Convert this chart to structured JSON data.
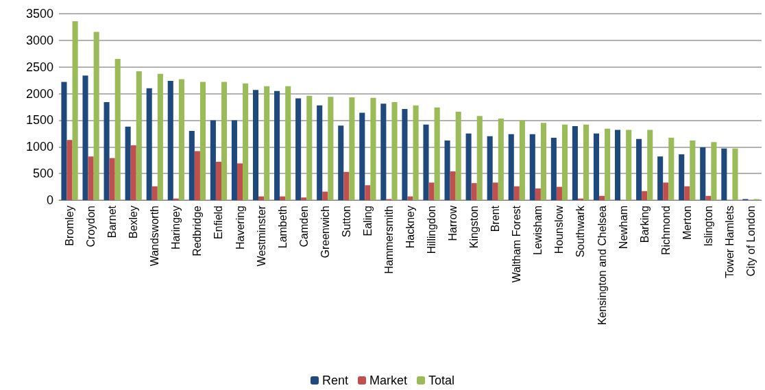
{
  "chart_data": {
    "type": "bar",
    "categories": [
      "Bromley",
      "Croydon",
      "Barnet",
      "Bexley",
      "Wandsworth",
      "Haringey",
      "Redbridge",
      "Enfield",
      "Havering",
      "Westminster",
      "Lambeth",
      "Camden",
      "Greenwich",
      "Sutton",
      "Ealing",
      "Hammersmith",
      "Hackney",
      "Hillingdon",
      "Harrow",
      "Kingston",
      "Brent",
      "Waltham Forest",
      "Lewisham",
      "Hounslow",
      "Southwark",
      "Kensington and Chelsea",
      "Newham",
      "Barking",
      "Richmond",
      "Merton",
      "Islington",
      "Tower Hamlets",
      "City of London"
    ],
    "series": [
      {
        "name": "Rent",
        "color": "#1f497d",
        "values": [
          2220,
          2340,
          1840,
          1380,
          2100,
          2240,
          1300,
          1500,
          1500,
          2070,
          2050,
          1910,
          1780,
          1400,
          1640,
          1810,
          1710,
          1420,
          1120,
          1250,
          1200,
          1240,
          1240,
          1170,
          1390,
          1250,
          1320,
          1150,
          820,
          860,
          990,
          970,
          20
        ]
      },
      {
        "name": "Market",
        "color": "#c0504d",
        "values": [
          1130,
          820,
          790,
          1030,
          260,
          30,
          920,
          720,
          690,
          70,
          70,
          50,
          160,
          530,
          280,
          20,
          70,
          330,
          540,
          320,
          330,
          260,
          220,
          250,
          30,
          80,
          0,
          170,
          330,
          260,
          80,
          0,
          0
        ]
      },
      {
        "name": "Total",
        "color": "#9bbb59",
        "values": [
          3360,
          3160,
          2650,
          2420,
          2370,
          2270,
          2220,
          2220,
          2190,
          2140,
          2140,
          1960,
          1940,
          1930,
          1920,
          1840,
          1780,
          1740,
          1660,
          1580,
          1530,
          1500,
          1450,
          1420,
          1420,
          1340,
          1320,
          1320,
          1170,
          1120,
          1090,
          970,
          20
        ]
      }
    ],
    "ylim": [
      0,
      3500
    ],
    "yticks": [
      0,
      500,
      1000,
      1500,
      2000,
      2500,
      3000,
      3500
    ],
    "grid": "y",
    "legend": "bottom"
  }
}
